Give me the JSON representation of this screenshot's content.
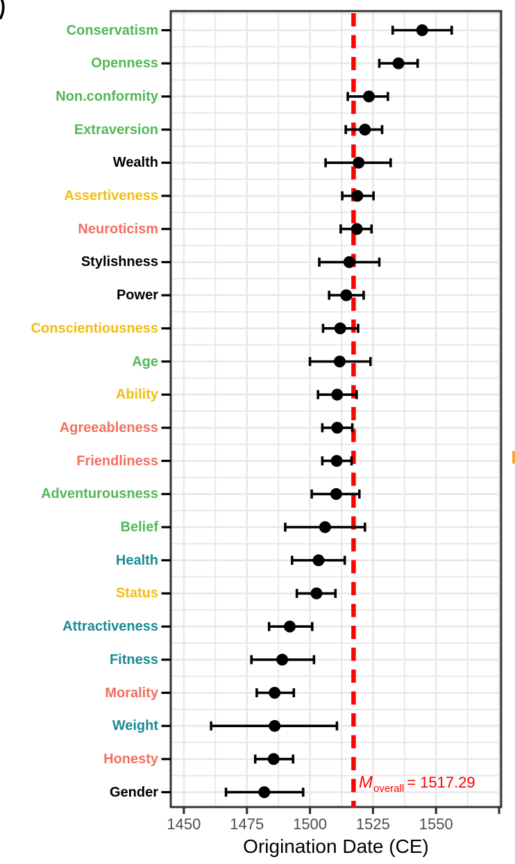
{
  "decorations": {
    "corner_label_fragment": ")",
    "clipped_right_mark_color": "#f2a93b"
  },
  "chart_data": {
    "type": "scatter",
    "subtype": "forest-dot-whisker",
    "title": "",
    "xlabel": "Origination Date (CE)",
    "ylabel": "",
    "xlim": [
      1444.8,
      1575.8
    ],
    "grid": true,
    "x_major_ticks": [
      1450,
      1475,
      1500,
      1525,
      1550,
      1575
    ],
    "x_tick_labels": [
      "1450",
      "1475",
      "1500",
      "1525",
      "1550"
    ],
    "x_minor_gridlines": [
      1462.5,
      1487.5,
      1512.5,
      1537.5,
      1562.5
    ],
    "reference_line": {
      "x": 1517.29,
      "color": "#ff0000",
      "style": "dashed"
    },
    "annotation": {
      "symbol": "M",
      "subscript": "overall",
      "value_text": "= 1517.29",
      "color": "#ff0000"
    },
    "colors": {
      "green": "#52b756",
      "gold": "#f0be0f",
      "salmon": "#f1705f",
      "teal": "#1b8a93",
      "black": "#000000"
    },
    "points": [
      {
        "label": "Conservatism",
        "color": "green",
        "mean": 1544.5,
        "ci_low": 1532.8,
        "ci_high": 1556.2
      },
      {
        "label": "Openness",
        "color": "green",
        "mean": 1535.1,
        "ci_low": 1527.5,
        "ci_high": 1542.7
      },
      {
        "label": "Non.conformity",
        "color": "green",
        "mean": 1523.4,
        "ci_low": 1515.0,
        "ci_high": 1530.9
      },
      {
        "label": "Extraversion",
        "color": "green",
        "mean": 1521.8,
        "ci_low": 1514.2,
        "ci_high": 1528.6
      },
      {
        "label": "Wealth",
        "color": "black",
        "mean": 1519.3,
        "ci_low": 1506.2,
        "ci_high": 1532.0
      },
      {
        "label": "Assertiveness",
        "color": "gold",
        "mean": 1518.8,
        "ci_low": 1512.8,
        "ci_high": 1525.2
      },
      {
        "label": "Neuroticism",
        "color": "salmon",
        "mean": 1518.6,
        "ci_low": 1512.2,
        "ci_high": 1524.4
      },
      {
        "label": "Stylishness",
        "color": "black",
        "mean": 1515.6,
        "ci_low": 1503.7,
        "ci_high": 1527.5
      },
      {
        "label": "Power",
        "color": "black",
        "mean": 1514.4,
        "ci_low": 1507.6,
        "ci_high": 1521.3
      },
      {
        "label": "Conscientiousness",
        "color": "gold",
        "mean": 1512.0,
        "ci_low": 1505.2,
        "ci_high": 1519.1
      },
      {
        "label": "Age",
        "color": "green",
        "mean": 1511.8,
        "ci_low": 1500.0,
        "ci_high": 1524.0
      },
      {
        "label": "Ability",
        "color": "gold",
        "mean": 1510.8,
        "ci_low": 1503.2,
        "ci_high": 1518.5
      },
      {
        "label": "Agreeableness",
        "color": "salmon",
        "mean": 1510.8,
        "ci_low": 1504.9,
        "ci_high": 1516.8
      },
      {
        "label": "Friendliness",
        "color": "salmon",
        "mean": 1510.6,
        "ci_low": 1504.9,
        "ci_high": 1516.5
      },
      {
        "label": "Adventurousness",
        "color": "green",
        "mean": 1510.4,
        "ci_low": 1500.7,
        "ci_high": 1519.6
      },
      {
        "label": "Belief",
        "color": "green",
        "mean": 1506.0,
        "ci_low": 1490.2,
        "ci_high": 1521.8
      },
      {
        "label": "Health",
        "color": "teal",
        "mean": 1503.4,
        "ci_low": 1492.9,
        "ci_high": 1513.8
      },
      {
        "label": "Status",
        "color": "gold",
        "mean": 1502.6,
        "ci_low": 1494.8,
        "ci_high": 1510.1
      },
      {
        "label": "Attractiveness",
        "color": "teal",
        "mean": 1492.0,
        "ci_low": 1483.8,
        "ci_high": 1500.9
      },
      {
        "label": "Fitness",
        "color": "teal",
        "mean": 1489.0,
        "ci_low": 1476.8,
        "ci_high": 1501.6
      },
      {
        "label": "Morality",
        "color": "salmon",
        "mean": 1486.0,
        "ci_low": 1478.9,
        "ci_high": 1493.6
      },
      {
        "label": "Weight",
        "color": "teal",
        "mean": 1486.0,
        "ci_low": 1460.8,
        "ci_high": 1510.7
      },
      {
        "label": "Honesty",
        "color": "salmon",
        "mean": 1485.6,
        "ci_low": 1478.3,
        "ci_high": 1493.3
      },
      {
        "label": "Gender",
        "color": "black",
        "mean": 1481.9,
        "ci_low": 1466.7,
        "ci_high": 1497.3
      }
    ]
  }
}
